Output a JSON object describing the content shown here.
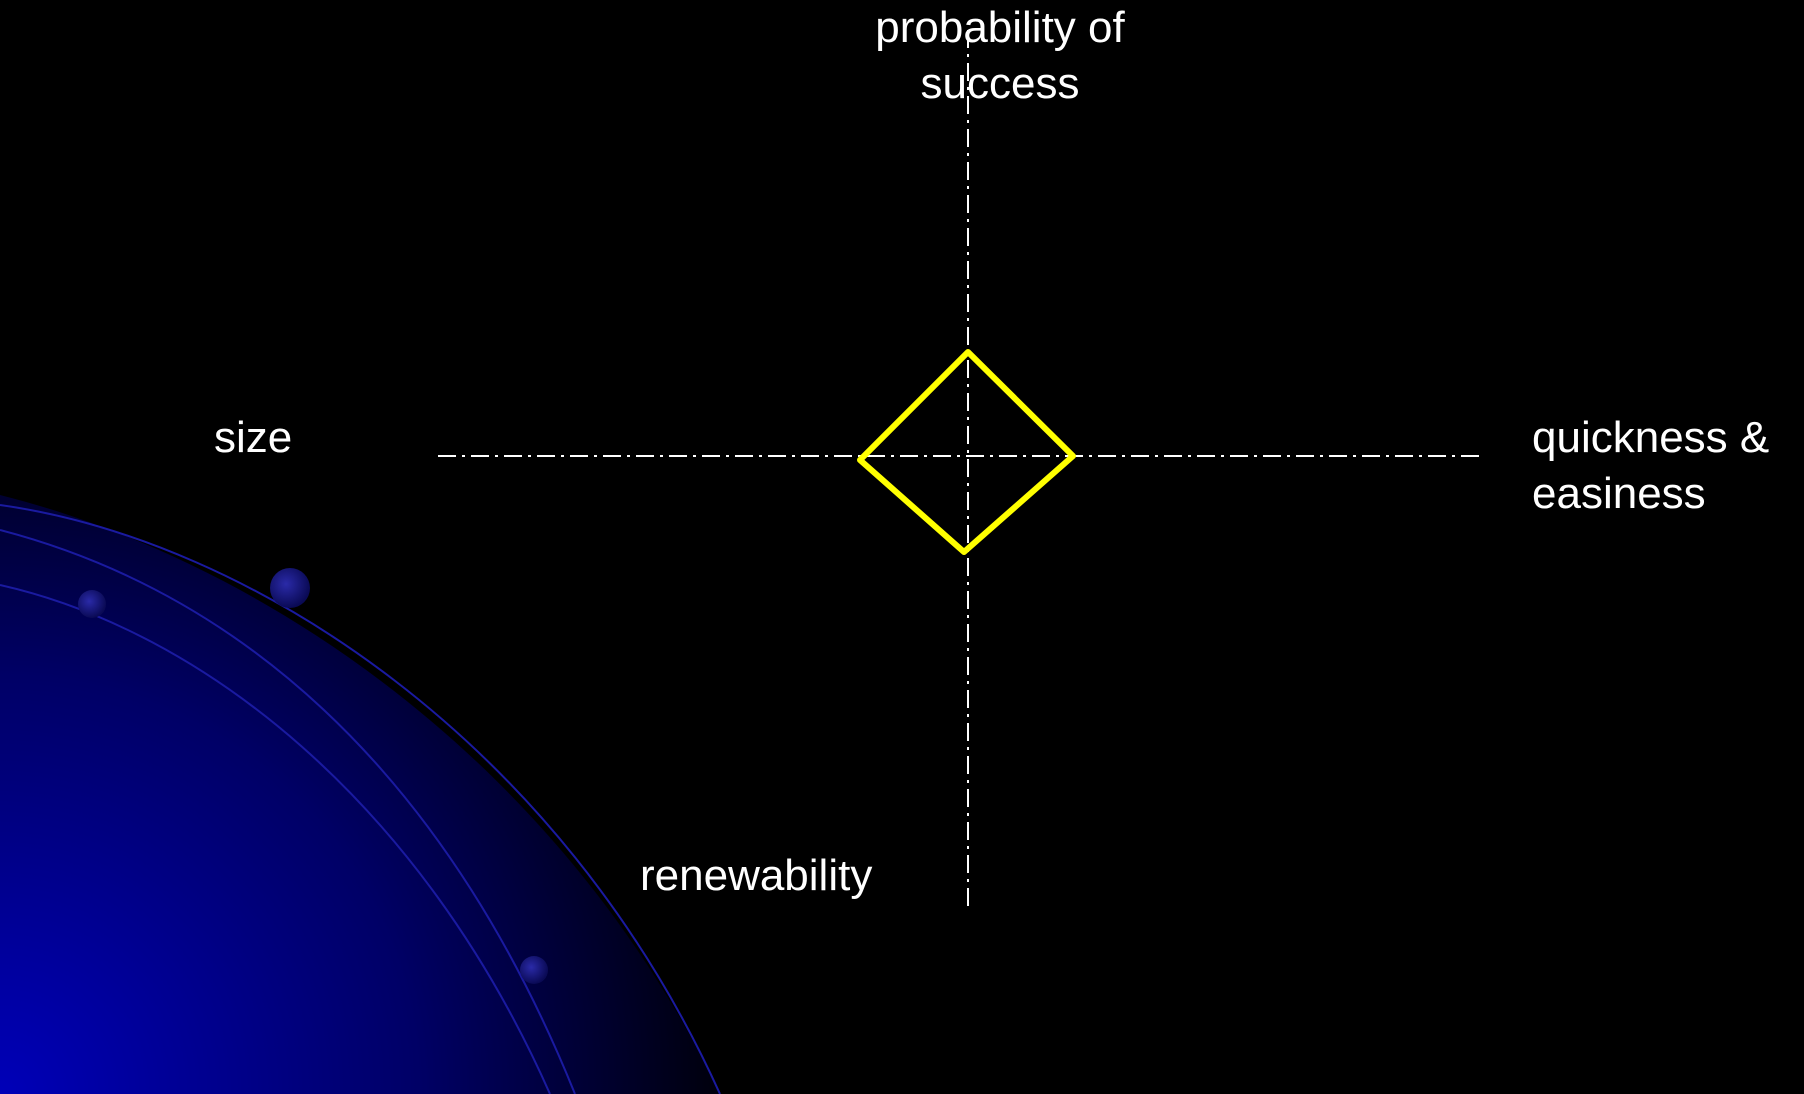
{
  "diagram": {
    "labels": {
      "top": [
        "probability of",
        "success"
      ],
      "left": "size",
      "right": [
        "quickness &",
        "easiness"
      ],
      "bottom": "renewability"
    },
    "colors": {
      "background": "#000000",
      "axis": "#ffffff",
      "shape": "#ffff00",
      "decoration": "#0000aa"
    }
  }
}
